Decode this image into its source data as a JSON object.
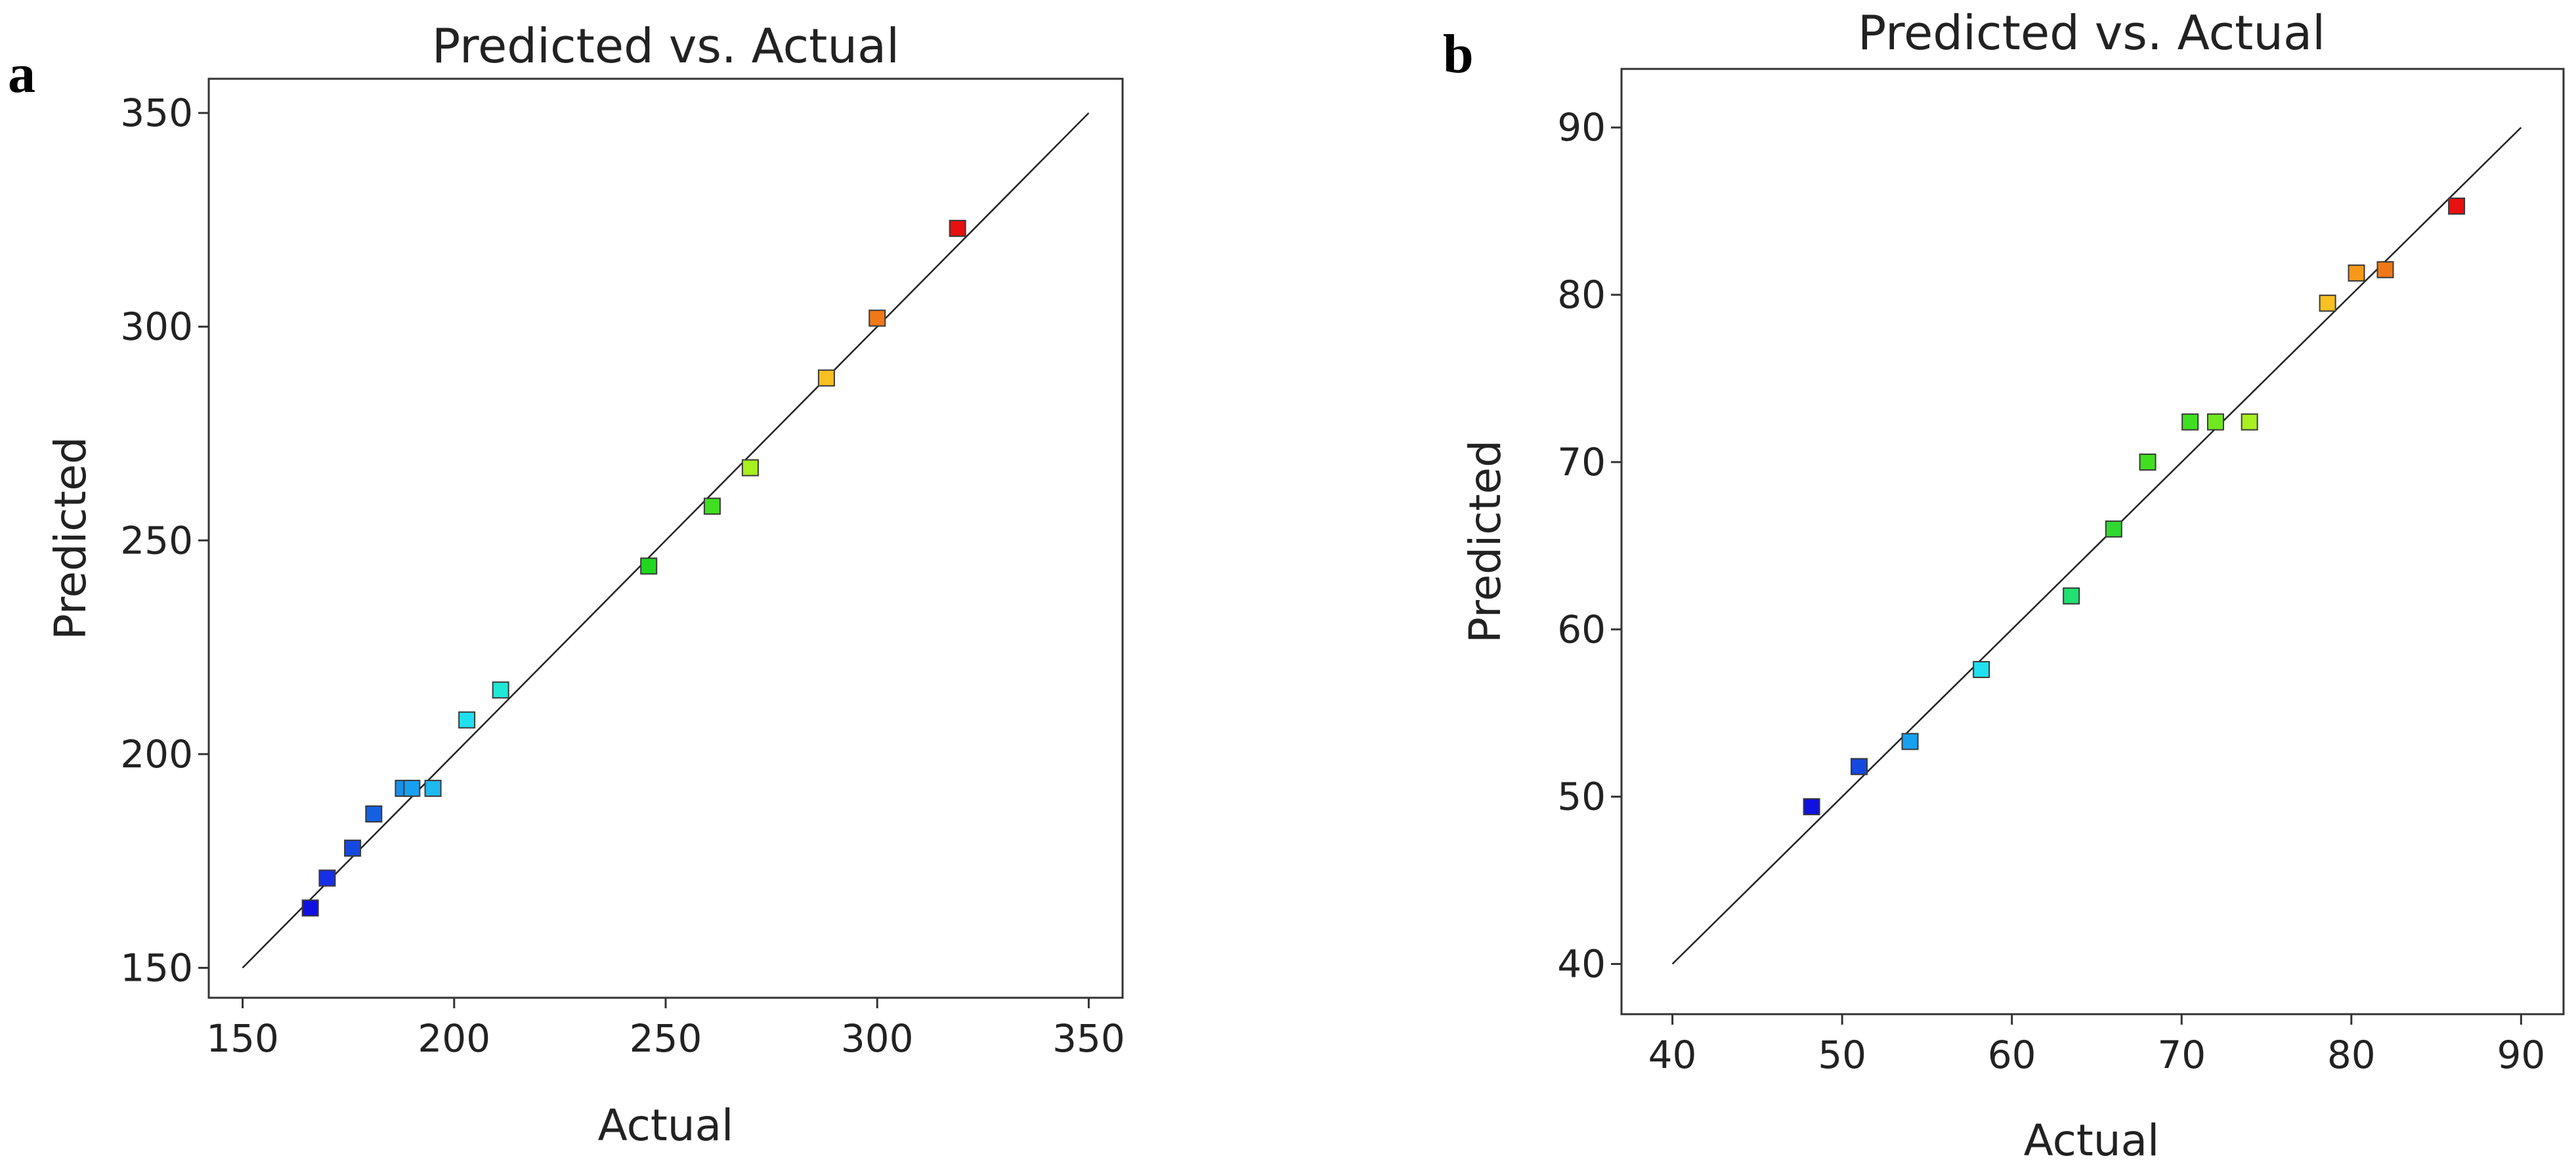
{
  "chart_data": [
    {
      "panel": "a",
      "type": "scatter",
      "title": "Predicted vs. Actual",
      "xlabel": "Actual",
      "ylabel": "Predicted",
      "xlim": [
        142,
        358
      ],
      "ylim": [
        143,
        358
      ],
      "xticks": [
        150,
        200,
        250,
        300,
        350
      ],
      "yticks": [
        150,
        200,
        250,
        300,
        350
      ],
      "reference_line": {
        "from": [
          150,
          150
        ],
        "to": [
          350,
          350
        ]
      },
      "points": [
        {
          "x": 166,
          "y": 164,
          "color": "#1010e0"
        },
        {
          "x": 170,
          "y": 171,
          "color": "#1530e8"
        },
        {
          "x": 176,
          "y": 178,
          "color": "#1548e0"
        },
        {
          "x": 181,
          "y": 186,
          "color": "#1560e0"
        },
        {
          "x": 188,
          "y": 192,
          "color": "#1890e8"
        },
        {
          "x": 190,
          "y": 192,
          "color": "#18a0f0"
        },
        {
          "x": 195,
          "y": 192,
          "color": "#20b8f0"
        },
        {
          "x": 203,
          "y": 208,
          "color": "#20e0f0"
        },
        {
          "x": 211,
          "y": 215,
          "color": "#20e8d8"
        },
        {
          "x": 246,
          "y": 244,
          "color": "#20d820"
        },
        {
          "x": 261,
          "y": 258,
          "color": "#40e020"
        },
        {
          "x": 270,
          "y": 267,
          "color": "#a8f020"
        },
        {
          "x": 288,
          "y": 288,
          "color": "#f8c020"
        },
        {
          "x": 300,
          "y": 302,
          "color": "#f07818"
        },
        {
          "x": 319,
          "y": 323,
          "color": "#e81010"
        }
      ]
    },
    {
      "panel": "b",
      "type": "scatter",
      "title": "Predicted vs. Actual",
      "xlabel": "Actual",
      "ylabel": "Predicted",
      "xlim": [
        37,
        92.5
      ],
      "ylim": [
        37,
        93.5
      ],
      "xticks": [
        40,
        50,
        60,
        70,
        80,
        90
      ],
      "yticks": [
        40,
        50,
        60,
        70,
        80,
        90
      ],
      "reference_line": {
        "from": [
          40,
          40
        ],
        "to": [
          90,
          90
        ]
      },
      "points": [
        {
          "x": 48.2,
          "y": 49.4,
          "color": "#1010e0"
        },
        {
          "x": 51.0,
          "y": 51.8,
          "color": "#1548e0"
        },
        {
          "x": 54.0,
          "y": 53.3,
          "color": "#18a0f0"
        },
        {
          "x": 58.2,
          "y": 57.6,
          "color": "#20e0f0"
        },
        {
          "x": 63.5,
          "y": 62.0,
          "color": "#20e070"
        },
        {
          "x": 66.0,
          "y": 66.0,
          "color": "#30d830"
        },
        {
          "x": 68.0,
          "y": 70.0,
          "color": "#40e020"
        },
        {
          "x": 70.5,
          "y": 72.4,
          "color": "#40e020"
        },
        {
          "x": 72.0,
          "y": 72.4,
          "color": "#70e820"
        },
        {
          "x": 74.0,
          "y": 72.4,
          "color": "#a8f020"
        },
        {
          "x": 78.6,
          "y": 79.5,
          "color": "#f8c020"
        },
        {
          "x": 80.3,
          "y": 81.3,
          "color": "#f89818"
        },
        {
          "x": 82.0,
          "y": 81.5,
          "color": "#f07818"
        },
        {
          "x": 86.2,
          "y": 85.3,
          "color": "#e81010"
        }
      ]
    }
  ]
}
